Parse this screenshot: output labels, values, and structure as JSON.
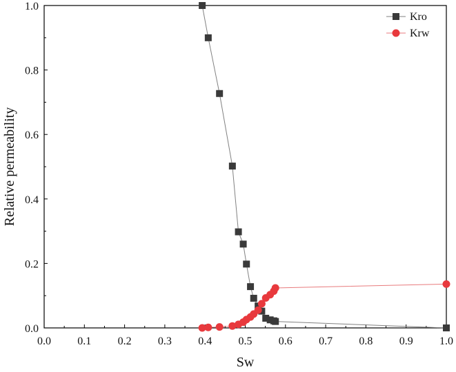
{
  "chart_data": {
    "type": "line",
    "xlabel": "Sw",
    "ylabel": "Relative permeability",
    "xlim": [
      0.0,
      1.0
    ],
    "ylim": [
      0.0,
      1.0
    ],
    "x_ticks": [
      "0.0",
      "0.1",
      "0.2",
      "0.3",
      "0.4",
      "0.5",
      "0.6",
      "0.7",
      "0.8",
      "0.9",
      "1.0"
    ],
    "y_ticks": [
      "0.0",
      "0.2",
      "0.4",
      "0.6",
      "0.8",
      "1.0"
    ],
    "x_tick_values": [
      0.0,
      0.1,
      0.2,
      0.3,
      0.4,
      0.5,
      0.6,
      0.7,
      0.8,
      0.9,
      1.0
    ],
    "y_tick_values": [
      0.0,
      0.2,
      0.4,
      0.6,
      0.8,
      1.0
    ],
    "grid": false,
    "legend_position": "top-right",
    "series": [
      {
        "name": "Kro",
        "color": "#3a3a3a",
        "line_color": "#808080",
        "marker": "square",
        "points": [
          [
            0.393,
            1.0
          ],
          [
            0.408,
            0.9
          ],
          [
            0.436,
            0.727
          ],
          [
            0.468,
            0.502
          ],
          [
            0.483,
            0.298
          ],
          [
            0.495,
            0.26
          ],
          [
            0.503,
            0.198
          ],
          [
            0.513,
            0.128
          ],
          [
            0.521,
            0.092
          ],
          [
            0.532,
            0.068
          ],
          [
            0.541,
            0.052
          ],
          [
            0.551,
            0.03
          ],
          [
            0.562,
            0.025
          ],
          [
            0.571,
            0.022
          ],
          [
            0.575,
            0.02
          ],
          [
            1.0,
            0.0
          ]
        ]
      },
      {
        "name": "Krw",
        "color": "#e8393d",
        "line_color": "#e87a7c",
        "marker": "circle",
        "points": [
          [
            0.393,
            0.0
          ],
          [
            0.408,
            0.0015
          ],
          [
            0.436,
            0.003
          ],
          [
            0.468,
            0.006
          ],
          [
            0.483,
            0.011
          ],
          [
            0.495,
            0.018
          ],
          [
            0.503,
            0.026
          ],
          [
            0.513,
            0.034
          ],
          [
            0.521,
            0.043
          ],
          [
            0.532,
            0.055
          ],
          [
            0.541,
            0.075
          ],
          [
            0.551,
            0.093
          ],
          [
            0.562,
            0.103
          ],
          [
            0.571,
            0.114
          ],
          [
            0.575,
            0.124
          ],
          [
            1.0,
            0.136
          ]
        ]
      }
    ]
  }
}
